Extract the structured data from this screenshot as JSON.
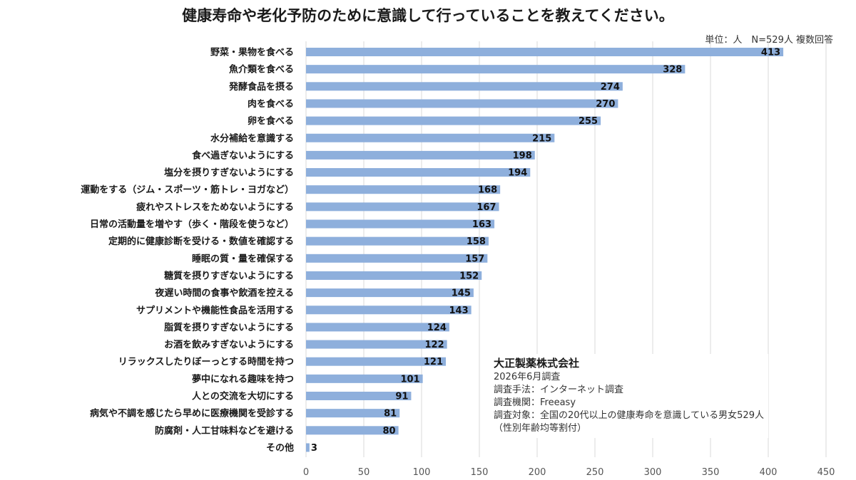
{
  "chart_data": {
    "type": "bar",
    "orientation": "horizontal",
    "title": "健康寿命や老化予防のために意識して行っていることを教えてください。",
    "unit_note": "単位：人　N=529人 複数回答",
    "categories": [
      "野菜・果物を食べる",
      "魚介類を食べる",
      "発酵食品を摂る",
      "肉を食べる",
      "卵を食べる",
      "水分補給を意識する",
      "食べ過ぎないようにする",
      "塩分を摂りすぎないようにする",
      "運動をする（ジム・スポーツ・筋トレ・ヨガなど）",
      "疲れやストレスをためないようにする",
      "日常の活動量を増やす（歩く・階段を使うなど）",
      "定期的に健康診断を受ける・数値を確認する",
      "睡眠の質・量を確保する",
      "糖質を摂りすぎないようにする",
      "夜遅い時間の食事や飲酒を控える",
      "サプリメントや機能性食品を活用する",
      "脂質を摂りすぎないようにする",
      "お酒を飲みすぎないようにする",
      "リラックスしたりぼーっとする時間を持つ",
      "夢中になれる趣味を持つ",
      "人との交流を大切にする",
      "病気や不調を感じたら早めに医療機関を受診する",
      "防腐剤・人工甘味料などを避ける",
      "その他"
    ],
    "values": [
      413,
      328,
      274,
      270,
      255,
      215,
      198,
      194,
      168,
      167,
      163,
      158,
      157,
      152,
      145,
      143,
      124,
      122,
      121,
      101,
      91,
      81,
      80,
      3
    ],
    "xlim": [
      0,
      450
    ],
    "xticks": [
      0,
      50,
      100,
      150,
      200,
      250,
      300,
      350,
      400,
      450
    ],
    "grid": true,
    "bar_color": "#8eafdc",
    "data_labels": true
  },
  "source_box": {
    "company": "大正製薬株式会社",
    "lines": [
      "2026年6月調査",
      "調査手法：インターネット調査",
      "調査機関：Freeasy",
      "調査対象：全国の20代以上の健康寿命を意識している男女529人",
      "（性別年齢均等割付）"
    ]
  }
}
